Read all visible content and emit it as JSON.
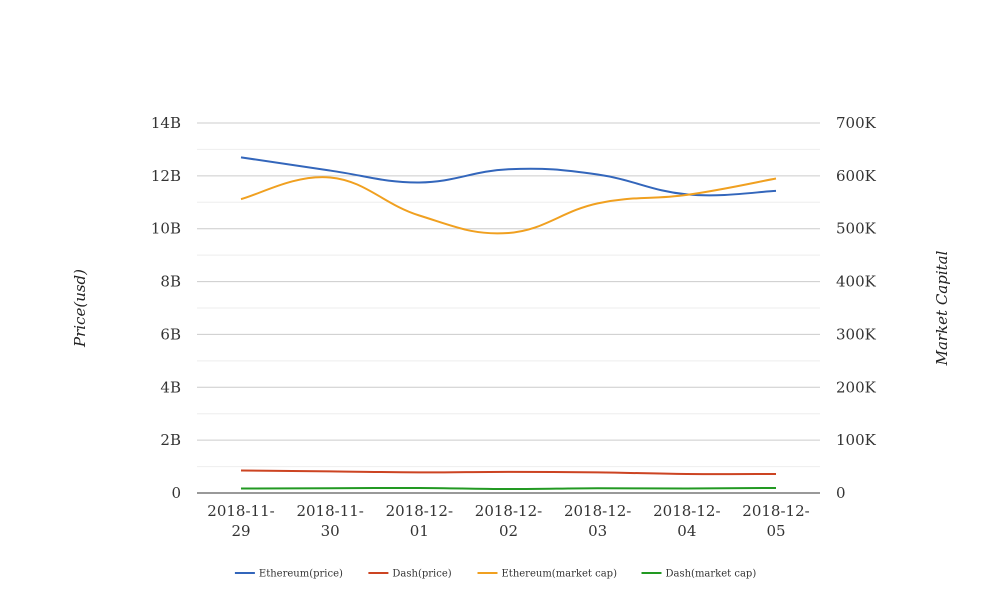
{
  "chart_data": {
    "type": "line",
    "categories": [
      [
        "2018-11-",
        "29"
      ],
      [
        "2018-11-",
        "30"
      ],
      [
        "2018-12-",
        "01"
      ],
      [
        "2018-12-",
        "02"
      ],
      [
        "2018-12-",
        "03"
      ],
      [
        "2018-12-",
        "04"
      ],
      [
        "2018-12-",
        "05"
      ]
    ],
    "y_left": {
      "label": "Price(usd)",
      "ticks": [
        "0",
        "2B",
        "4B",
        "6B",
        "8B",
        "10B",
        "12B",
        "14B"
      ],
      "range": [
        0,
        14000000000
      ]
    },
    "y_right": {
      "label": "Market Capital",
      "ticks": [
        "0",
        "100K",
        "200K",
        "300K",
        "400K",
        "500K",
        "600K",
        "700K"
      ],
      "range": [
        0,
        700000
      ]
    },
    "series": [
      {
        "name": "Ethereum(price)",
        "color": "#3366bb",
        "axis": "left",
        "values": [
          12700000000,
          12200000000,
          11750000000,
          12250000000,
          12050000000,
          11300000000,
          11430000000
        ]
      },
      {
        "name": "Dash(price)",
        "color": "#cc4422",
        "axis": "left",
        "values": [
          850000000,
          820000000,
          780000000,
          800000000,
          780000000,
          720000000,
          720000000
        ]
      },
      {
        "name": "Ethereum(market cap)",
        "color": "#f0a020",
        "axis": "right",
        "values": [
          556000,
          597000,
          525000,
          492000,
          548000,
          564000,
          595000
        ]
      },
      {
        "name": "Dash(market cap)",
        "color": "#229922",
        "axis": "right",
        "values": [
          8500,
          9000,
          9500,
          7500,
          9000,
          8500,
          9500
        ]
      }
    ],
    "grid": true,
    "legend": "bottom-center"
  }
}
